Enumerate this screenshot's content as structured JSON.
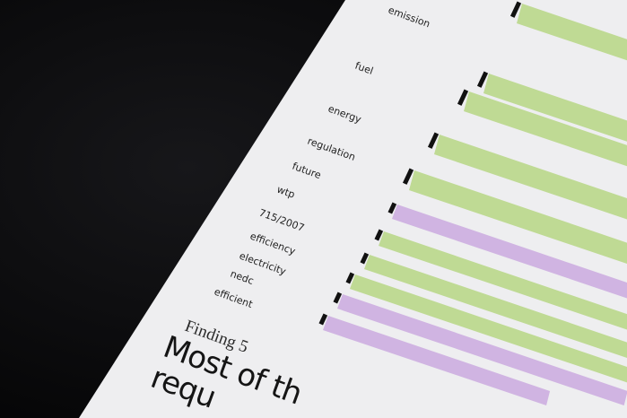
{
  "chart": {
    "labels": [
      "emission",
      "fuel",
      "energy",
      "regulation",
      "future",
      "wtp",
      "715/2007",
      "efficiency",
      "electricity",
      "nedc",
      "efficient"
    ],
    "band_colors": [
      "green",
      "green",
      "green",
      "green",
      "green",
      "purple",
      "green",
      "green",
      "green",
      "purple",
      "purple"
    ]
  },
  "colors": {
    "green": "#bcd88e",
    "purple": "#cdb0e0",
    "background": "#0b0b0c",
    "paper": "#efeff0"
  },
  "finding": {
    "label": "Finding 5",
    "headline_line1": "Most of th",
    "headline_line2": "requ"
  }
}
